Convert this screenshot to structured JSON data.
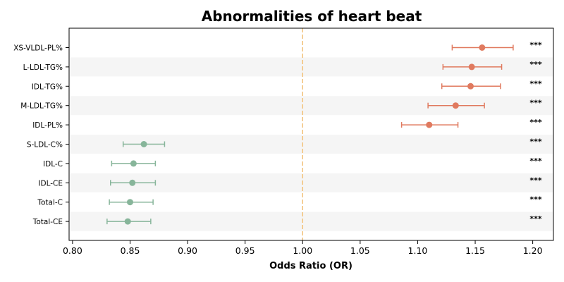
{
  "chart_data": {
    "type": "forest",
    "title": "Abnormalities of heart beat",
    "xlabel": "Odds Ratio (OR)",
    "xlim": [
      0.797,
      1.218
    ],
    "xticks": [
      "0.80",
      "0.85",
      "0.90",
      "0.95",
      "1.00",
      "1.05",
      "1.10",
      "1.15",
      "1.20"
    ],
    "reference_line": 1.0,
    "grid": false,
    "colors": {
      "increased": "#e07a5f",
      "decreased": "#87b59a",
      "reference": "#f2c27a",
      "band": "#f5f5f5"
    },
    "rows": [
      {
        "label": "XS-VLDL-PL%",
        "or": 1.156,
        "lower": 1.13,
        "upper": 1.183,
        "significance": "***",
        "direction": "increased"
      },
      {
        "label": "L-LDL-TG%",
        "or": 1.147,
        "lower": 1.122,
        "upper": 1.173,
        "significance": "***",
        "direction": "increased"
      },
      {
        "label": "IDL-TG%",
        "or": 1.146,
        "lower": 1.121,
        "upper": 1.172,
        "significance": "***",
        "direction": "increased"
      },
      {
        "label": "M-LDL-TG%",
        "or": 1.133,
        "lower": 1.109,
        "upper": 1.158,
        "significance": "***",
        "direction": "increased"
      },
      {
        "label": "IDL-PL%",
        "or": 1.11,
        "lower": 1.086,
        "upper": 1.135,
        "significance": "***",
        "direction": "increased"
      },
      {
        "label": "S-LDL-C%",
        "or": 0.862,
        "lower": 0.844,
        "upper": 0.88,
        "significance": "***",
        "direction": "decreased"
      },
      {
        "label": "IDL-C",
        "or": 0.853,
        "lower": 0.834,
        "upper": 0.872,
        "significance": "***",
        "direction": "decreased"
      },
      {
        "label": "IDL-CE",
        "or": 0.852,
        "lower": 0.833,
        "upper": 0.872,
        "significance": "***",
        "direction": "decreased"
      },
      {
        "label": "Total-C",
        "or": 0.85,
        "lower": 0.832,
        "upper": 0.87,
        "significance": "***",
        "direction": "decreased"
      },
      {
        "label": "Total-CE",
        "or": 0.848,
        "lower": 0.83,
        "upper": 0.868,
        "significance": "***",
        "direction": "decreased"
      }
    ]
  }
}
